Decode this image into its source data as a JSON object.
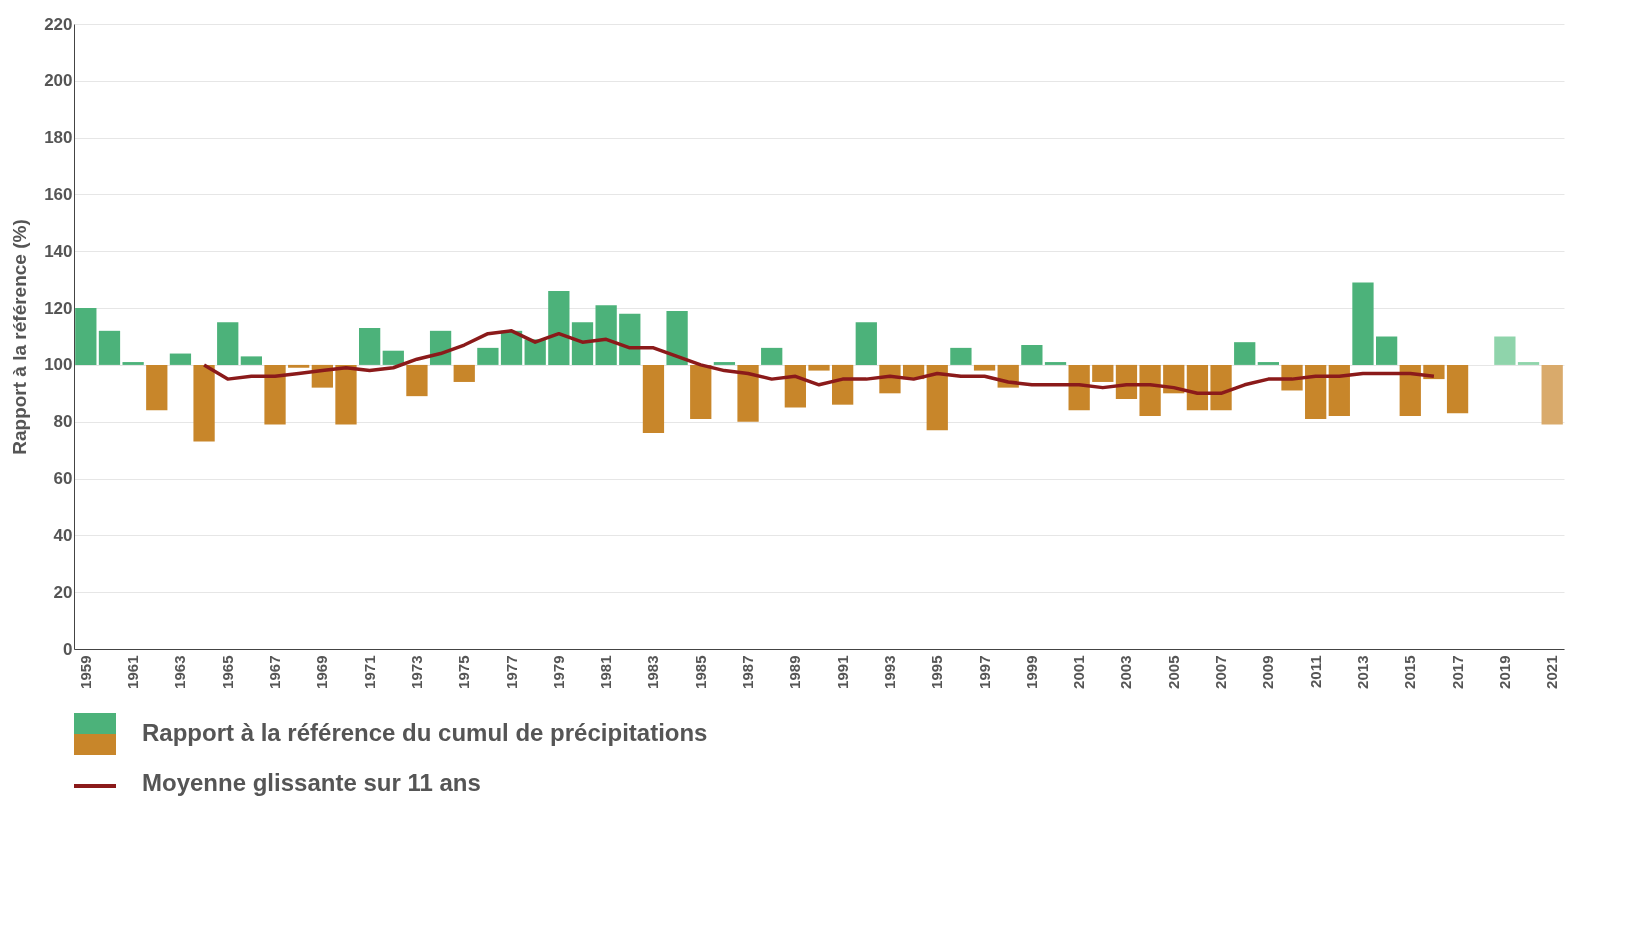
{
  "chart_data": {
    "type": "bar",
    "ylabel": "Rapport à la référence (%)",
    "categories": [
      "1959",
      null,
      "1961",
      null,
      "1963",
      null,
      "1965",
      null,
      "1967",
      null,
      "1969",
      null,
      "1971",
      null,
      "1973",
      null,
      "1975",
      null,
      "1977",
      null,
      "1979",
      null,
      "1981",
      null,
      "1983",
      null,
      "1985",
      null,
      "1987",
      null,
      "1989",
      null,
      "1991",
      null,
      "1993",
      null,
      "1995",
      null,
      "1997",
      null,
      "1999",
      null,
      "2001",
      null,
      "2003",
      null,
      "2005",
      null,
      "2007",
      null,
      "2009",
      null,
      "2011",
      null,
      "2013",
      null,
      "2015",
      null,
      "2017",
      null,
      "2019",
      null,
      "2021"
    ],
    "series": [
      {
        "name": "Rapport à la référence du cumul de précipitations",
        "base": [
          100,
          100,
          100,
          100,
          100,
          100,
          100,
          100,
          100,
          100,
          100,
          100,
          100,
          100,
          100,
          100,
          100,
          100,
          100,
          100,
          100,
          100,
          100,
          100,
          100,
          100,
          100,
          100,
          100,
          100,
          100,
          100,
          100,
          100,
          100,
          100,
          100,
          100,
          100,
          100,
          100,
          100,
          100,
          100,
          100,
          100,
          100,
          100,
          100,
          100,
          100,
          100,
          100,
          100,
          100,
          100,
          100,
          100,
          100,
          null,
          100,
          100,
          100
        ],
        "values": [
          20,
          12,
          1,
          -16,
          4,
          -27,
          15,
          3,
          -21,
          -1,
          -8,
          -21,
          13,
          5,
          -11,
          12,
          -6,
          6,
          12,
          9,
          26,
          15,
          21,
          18,
          -24,
          19,
          -19,
          1,
          -20,
          6,
          -15,
          -2,
          -14,
          15,
          -10,
          -5,
          -23,
          6,
          -2,
          -8,
          7,
          1,
          -16,
          -6,
          -12,
          -18,
          -10,
          -16,
          -16,
          8,
          1,
          -9,
          -19,
          -18,
          29,
          10,
          -18,
          -5,
          -17,
          null,
          10,
          1,
          -21
        ],
        "colors": [
          "#4cb27a",
          "#4cb27a",
          "#4cb27a",
          "#c8862a",
          "#4cb27a",
          "#c8862a",
          "#4cb27a",
          "#4cb27a",
          "#c8862a",
          "#c8862a",
          "#c8862a",
          "#c8862a",
          "#4cb27a",
          "#4cb27a",
          "#c8862a",
          "#4cb27a",
          "#c8862a",
          "#4cb27a",
          "#4cb27a",
          "#4cb27a",
          "#4cb27a",
          "#4cb27a",
          "#4cb27a",
          "#4cb27a",
          "#c8862a",
          "#4cb27a",
          "#c8862a",
          "#4cb27a",
          "#c8862a",
          "#4cb27a",
          "#c8862a",
          "#c8862a",
          "#c8862a",
          "#4cb27a",
          "#c8862a",
          "#c8862a",
          "#c8862a",
          "#4cb27a",
          "#c8862a",
          "#c8862a",
          "#4cb27a",
          "#4cb27a",
          "#c8862a",
          "#c8862a",
          "#c8862a",
          "#c8862a",
          "#c8862a",
          "#c8862a",
          "#c8862a",
          "#4cb27a",
          "#4cb27a",
          "#c8862a",
          "#c8862a",
          "#c8862a",
          "#4cb27a",
          "#4cb27a",
          "#c8862a",
          "#c8862a",
          "#c8862a",
          "#4cb27a",
          "#8fd4ab",
          "#8fd4ab",
          "#d9aa6b"
        ]
      },
      {
        "name": "Moyenne glissante sur 11 ans",
        "type": "line",
        "color": "#8b1a1a",
        "values": [
          null,
          null,
          null,
          null,
          null,
          100,
          95,
          96,
          96,
          97,
          98,
          99,
          98,
          99,
          102,
          104,
          107,
          111,
          112,
          108,
          111,
          108,
          109,
          106,
          106,
          103,
          100,
          98,
          97,
          95,
          96,
          93,
          95,
          95,
          96,
          95,
          97,
          96,
          96,
          94,
          93,
          93,
          93,
          92,
          93,
          93,
          92,
          90,
          90,
          93,
          95,
          95,
          96,
          96,
          97,
          97,
          97,
          96,
          null,
          null,
          null,
          null,
          null
        ]
      }
    ],
    "ylim": [
      0,
      220
    ],
    "yticks": [
      0,
      20,
      40,
      60,
      80,
      100,
      120,
      140,
      160,
      180,
      200,
      220
    ],
    "grid": "y",
    "legend": "bottom"
  }
}
